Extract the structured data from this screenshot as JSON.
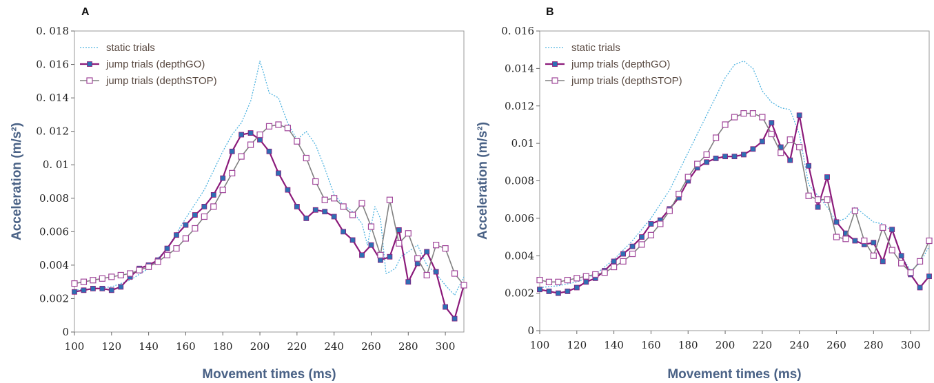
{
  "colors": {
    "static": "#4fb3e0",
    "go_line": "#8b1a7a",
    "go_marker": "#2e6fb3",
    "stop_line": "#808080",
    "stop_marker": "#a0469a",
    "axis_title": "#4a6286"
  },
  "chart_data": [
    {
      "panel_label": "A",
      "type": "line",
      "xlabel": "Movement times (ms)",
      "ylabel": "Acceleration (m/s²)",
      "xlim": [
        100,
        310
      ],
      "ylim": [
        0,
        0.018
      ],
      "xticks": [
        100,
        120,
        140,
        160,
        180,
        200,
        220,
        240,
        260,
        280,
        300
      ],
      "xtick_labels": [
        "100",
        "120",
        "140",
        "160",
        "180",
        "200",
        "220",
        "240",
        "260",
        "280",
        "300"
      ],
      "yticks": [
        0,
        0.002,
        0.004,
        0.006,
        0.008,
        0.01,
        0.012,
        0.014,
        0.016,
        0.018
      ],
      "ytick_labels": [
        "0",
        "0.002",
        "0.004",
        "0.006",
        "0.008",
        "0. 01",
        "0. 012",
        "0. 014",
        "0. 016",
        "0. 018"
      ],
      "legend_position": "top-left",
      "series": [
        {
          "name": "static trials",
          "style": "dotted",
          "x": [
            100,
            110,
            120,
            130,
            140,
            150,
            160,
            170,
            180,
            185,
            190,
            195,
            198,
            200,
            202,
            205,
            210,
            215,
            220,
            225,
            230,
            235,
            240,
            245,
            250,
            255,
            258,
            262,
            265,
            268,
            270,
            273,
            276,
            280,
            285,
            290,
            295,
            300,
            305,
            310
          ],
          "y": [
            0.0025,
            0.0026,
            0.0027,
            0.0031,
            0.0038,
            0.005,
            0.0068,
            0.0085,
            0.0108,
            0.0118,
            0.0125,
            0.0138,
            0.0152,
            0.0162,
            0.0155,
            0.0143,
            0.014,
            0.0125,
            0.0115,
            0.012,
            0.0112,
            0.0098,
            0.0082,
            0.0076,
            0.0072,
            0.0065,
            0.0052,
            0.0075,
            0.0068,
            0.0035,
            0.0036,
            0.0038,
            0.0045,
            0.0048,
            0.0052,
            0.004,
            0.0035,
            0.0028,
            0.0022,
            0.0033
          ]
        },
        {
          "name": "jump trials (depthGO)",
          "style": "filled-square",
          "x": [
            100,
            105,
            110,
            115,
            120,
            125,
            130,
            135,
            140,
            145,
            150,
            155,
            160,
            165,
            170,
            175,
            180,
            185,
            190,
            195,
            200,
            205,
            210,
            215,
            220,
            225,
            230,
            235,
            240,
            245,
            250,
            255,
            260,
            265,
            270,
            275,
            280,
            285,
            290,
            295,
            300,
            305,
            310
          ],
          "y": [
            0.0024,
            0.0025,
            0.0026,
            0.0026,
            0.0025,
            0.0027,
            0.0033,
            0.0038,
            0.004,
            0.0043,
            0.005,
            0.0058,
            0.0064,
            0.007,
            0.0075,
            0.0082,
            0.0092,
            0.0108,
            0.0118,
            0.0119,
            0.0115,
            0.0108,
            0.0095,
            0.0085,
            0.0075,
            0.0068,
            0.0073,
            0.0072,
            0.0069,
            0.006,
            0.0055,
            0.0046,
            0.0052,
            0.0043,
            0.0045,
            0.0061,
            0.003,
            0.0041,
            0.0048,
            0.0036,
            0.0015,
            0.0008,
            0.0028
          ]
        },
        {
          "name": "jump trials (depthSTOP)",
          "style": "open-square",
          "x": [
            100,
            105,
            110,
            115,
            120,
            125,
            130,
            135,
            140,
            145,
            150,
            155,
            160,
            165,
            170,
            175,
            180,
            185,
            190,
            195,
            200,
            205,
            210,
            215,
            220,
            225,
            230,
            235,
            240,
            245,
            250,
            255,
            260,
            265,
            270,
            275,
            280,
            285,
            290,
            295,
            300,
            305,
            310
          ],
          "y": [
            0.0029,
            0.003,
            0.0031,
            0.0032,
            0.0033,
            0.0034,
            0.0035,
            0.0037,
            0.0039,
            0.0042,
            0.0046,
            0.005,
            0.0056,
            0.0062,
            0.0069,
            0.0075,
            0.0085,
            0.0095,
            0.0105,
            0.0112,
            0.0118,
            0.0123,
            0.0124,
            0.0122,
            0.0114,
            0.0104,
            0.009,
            0.0079,
            0.008,
            0.0075,
            0.007,
            0.0077,
            0.0063,
            0.0046,
            0.0079,
            0.0053,
            0.0059,
            0.0044,
            0.0034,
            0.0052,
            0.005,
            0.0035,
            0.0028
          ]
        }
      ]
    },
    {
      "panel_label": "B",
      "type": "line",
      "xlabel": "Movement times (ms)",
      "ylabel": "Acceleration (m/s²)",
      "xlim": [
        100,
        310
      ],
      "ylim": [
        0,
        0.016
      ],
      "xticks": [
        100,
        120,
        140,
        160,
        180,
        200,
        220,
        240,
        260,
        280,
        300
      ],
      "xtick_labels": [
        "100",
        "120",
        "140",
        "160",
        "180",
        "200",
        "220",
        "240",
        "260",
        "280",
        "300"
      ],
      "yticks": [
        0,
        0.002,
        0.004,
        0.006,
        0.008,
        0.01,
        0.012,
        0.014,
        0.016
      ],
      "ytick_labels": [
        "0",
        "0.002",
        "0.004",
        "0.006",
        "0.008",
        "0.01",
        "0.012",
        "0.014",
        "0. 016"
      ],
      "legend_position": "top-left",
      "series": [
        {
          "name": "static trials",
          "style": "dotted",
          "x": [
            100,
            110,
            120,
            130,
            140,
            150,
            160,
            170,
            180,
            190,
            200,
            205,
            210,
            215,
            220,
            225,
            230,
            235,
            240,
            245,
            250,
            255,
            260,
            265,
            270,
            275,
            280,
            285,
            290,
            295,
            300,
            305,
            310
          ],
          "y": [
            0.0023,
            0.0024,
            0.0026,
            0.003,
            0.0038,
            0.0048,
            0.006,
            0.0075,
            0.0095,
            0.0115,
            0.0135,
            0.0142,
            0.0144,
            0.014,
            0.0128,
            0.0122,
            0.0119,
            0.0118,
            0.0105,
            0.0078,
            0.0072,
            0.0066,
            0.0058,
            0.006,
            0.0066,
            0.0062,
            0.0058,
            0.0057,
            0.0053,
            0.004,
            0.0032,
            0.0036,
            0.0045
          ]
        },
        {
          "name": "jump trials (depthGO)",
          "style": "filled-square",
          "x": [
            100,
            105,
            110,
            115,
            120,
            125,
            130,
            135,
            140,
            145,
            150,
            155,
            160,
            165,
            170,
            175,
            180,
            185,
            190,
            195,
            200,
            205,
            210,
            215,
            220,
            225,
            230,
            235,
            240,
            245,
            250,
            255,
            260,
            265,
            270,
            275,
            280,
            285,
            290,
            295,
            300,
            305,
            310
          ],
          "y": [
            0.0022,
            0.0021,
            0.002,
            0.0021,
            0.0023,
            0.0026,
            0.0028,
            0.0032,
            0.0037,
            0.0041,
            0.0045,
            0.005,
            0.0057,
            0.0059,
            0.0065,
            0.0071,
            0.008,
            0.0087,
            0.009,
            0.0092,
            0.0093,
            0.0093,
            0.0094,
            0.0097,
            0.0101,
            0.0111,
            0.0098,
            0.0091,
            0.0115,
            0.0088,
            0.0066,
            0.0082,
            0.0058,
            0.0052,
            0.0048,
            0.0046,
            0.0047,
            0.0037,
            0.0054,
            0.004,
            0.003,
            0.0023,
            0.0029
          ]
        },
        {
          "name": "jump trials (depthSTOP)",
          "style": "open-square",
          "x": [
            100,
            105,
            110,
            115,
            120,
            125,
            130,
            135,
            140,
            145,
            150,
            155,
            160,
            165,
            170,
            175,
            180,
            185,
            190,
            195,
            200,
            205,
            210,
            215,
            220,
            225,
            230,
            235,
            240,
            245,
            250,
            255,
            260,
            265,
            270,
            275,
            280,
            285,
            290,
            295,
            300,
            305,
            310
          ],
          "y": [
            0.0027,
            0.0026,
            0.0026,
            0.0027,
            0.0028,
            0.0029,
            0.003,
            0.0031,
            0.0034,
            0.0037,
            0.0041,
            0.0046,
            0.0051,
            0.0057,
            0.0064,
            0.0073,
            0.0082,
            0.0089,
            0.0094,
            0.0103,
            0.011,
            0.0114,
            0.0116,
            0.0116,
            0.0114,
            0.0105,
            0.0095,
            0.0102,
            0.0098,
            0.0072,
            0.007,
            0.007,
            0.005,
            0.0049,
            0.0064,
            0.0048,
            0.004,
            0.0055,
            0.0043,
            0.0036,
            0.0031,
            0.0037,
            0.0048
          ]
        }
      ]
    }
  ]
}
